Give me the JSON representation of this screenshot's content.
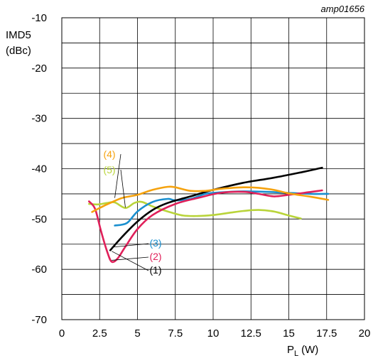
{
  "chart_data": {
    "type": "line",
    "figure_id": "amp01656",
    "ylabel_line1": "IMD5",
    "ylabel_line2": "(dBc)",
    "xlabel_main": "P",
    "xlabel_sub": "L",
    "xlabel_unit": "(W)",
    "xlim": [
      0,
      20
    ],
    "ylim": [
      -70,
      -10
    ],
    "x_ticks": [
      0,
      2.5,
      5,
      7.5,
      10,
      12.5,
      15,
      17.5,
      20
    ],
    "x_tick_labels": [
      "0",
      "2.5",
      "5",
      "7.5",
      "10",
      "12.5",
      "15",
      "17.5",
      "20"
    ],
    "y_ticks": [
      -70,
      -60,
      -50,
      -40,
      -30,
      -20,
      -10
    ],
    "y_tick_labels": [
      "-70",
      "-60",
      "-50",
      "-40",
      "-30",
      "-20",
      "-10"
    ],
    "grid_x": [
      0,
      2.5,
      5,
      7.5,
      10,
      12.5,
      15,
      17.5,
      20
    ],
    "grid_y": [
      -70,
      -65,
      -60,
      -55,
      -50,
      -45,
      -40,
      -35,
      -30,
      -25,
      -20,
      -15,
      -10
    ],
    "series": [
      {
        "name": "(1)",
        "color": "#000000",
        "points": [
          [
            3.2,
            -56.2
          ],
          [
            4.0,
            -53.5
          ],
          [
            5.0,
            -50.5
          ],
          [
            6.0,
            -48.2
          ],
          [
            7.0,
            -46.8
          ],
          [
            8.5,
            -45.5
          ],
          [
            10.0,
            -44.2
          ],
          [
            12.0,
            -42.8
          ],
          [
            14.0,
            -41.8
          ],
          [
            16.0,
            -40.6
          ],
          [
            17.2,
            -39.8
          ]
        ]
      },
      {
        "name": "(2)",
        "color": "#e0205a",
        "points": [
          [
            1.8,
            -46.5
          ],
          [
            2.2,
            -48.0
          ],
          [
            2.6,
            -52.5
          ],
          [
            3.0,
            -56.5
          ],
          [
            3.3,
            -58.5
          ],
          [
            3.7,
            -57.8
          ],
          [
            4.2,
            -55.5
          ],
          [
            5.0,
            -52.0
          ],
          [
            6.0,
            -49.2
          ],
          [
            7.5,
            -47.0
          ],
          [
            9.0,
            -45.8
          ],
          [
            10.5,
            -44.8
          ],
          [
            12.0,
            -44.6
          ],
          [
            13.0,
            -45.0
          ],
          [
            14.0,
            -45.5
          ],
          [
            15.0,
            -45.2
          ],
          [
            16.5,
            -44.6
          ],
          [
            17.2,
            -44.3
          ]
        ]
      },
      {
        "name": "(3)",
        "color": "#1a8fcf",
        "points": [
          [
            3.5,
            -51.3
          ],
          [
            4.3,
            -50.8
          ],
          [
            5.0,
            -48.5
          ],
          [
            6.0,
            -46.6
          ],
          [
            7.0,
            -46.0
          ],
          [
            7.5,
            -46.3
          ],
          [
            8.5,
            -46.0
          ],
          [
            9.5,
            -45.0
          ],
          [
            10.5,
            -44.7
          ],
          [
            12.0,
            -44.5
          ],
          [
            13.5,
            -44.6
          ],
          [
            15.0,
            -44.8
          ],
          [
            16.5,
            -45.0
          ],
          [
            17.6,
            -45.0
          ]
        ]
      },
      {
        "name": "(4)",
        "color": "#f5a20e",
        "points": [
          [
            2.0,
            -48.6
          ],
          [
            2.5,
            -47.8
          ],
          [
            3.2,
            -46.8
          ],
          [
            4.0,
            -45.8
          ],
          [
            5.0,
            -45.2
          ],
          [
            6.0,
            -44.2
          ],
          [
            7.0,
            -43.6
          ],
          [
            7.5,
            -43.7
          ],
          [
            8.5,
            -44.4
          ],
          [
            9.5,
            -44.4
          ],
          [
            10.5,
            -44.0
          ],
          [
            12.0,
            -43.7
          ],
          [
            13.0,
            -43.8
          ],
          [
            14.0,
            -44.2
          ],
          [
            15.0,
            -44.9
          ],
          [
            16.5,
            -45.6
          ],
          [
            17.6,
            -46.2
          ]
        ]
      },
      {
        "name": "(5)",
        "color": "#b9d43a",
        "points": [
          [
            1.8,
            -47.0
          ],
          [
            2.4,
            -47.1
          ],
          [
            3.0,
            -46.8
          ],
          [
            3.5,
            -46.7
          ],
          [
            4.2,
            -47.8
          ],
          [
            4.8,
            -46.8
          ],
          [
            5.3,
            -46.6
          ],
          [
            6.0,
            -47.5
          ],
          [
            7.0,
            -48.5
          ],
          [
            8.0,
            -49.3
          ],
          [
            9.0,
            -49.4
          ],
          [
            10.0,
            -49.2
          ],
          [
            11.0,
            -48.8
          ],
          [
            12.0,
            -48.4
          ],
          [
            13.0,
            -48.2
          ],
          [
            14.0,
            -48.5
          ],
          [
            15.0,
            -49.3
          ],
          [
            15.8,
            -49.9
          ]
        ]
      }
    ],
    "annotations": [
      {
        "text": "(4)",
        "series": "(4)",
        "color": "#f5a20e"
      },
      {
        "text": "(5)",
        "series": "(5)",
        "color": "#b9d43a"
      },
      {
        "text": "(3)",
        "series": "(3)",
        "color": "#1a8fcf"
      },
      {
        "text": "(2)",
        "series": "(2)",
        "color": "#e0205a"
      },
      {
        "text": "(1)",
        "series": "(1)",
        "color": "#000000"
      }
    ]
  }
}
